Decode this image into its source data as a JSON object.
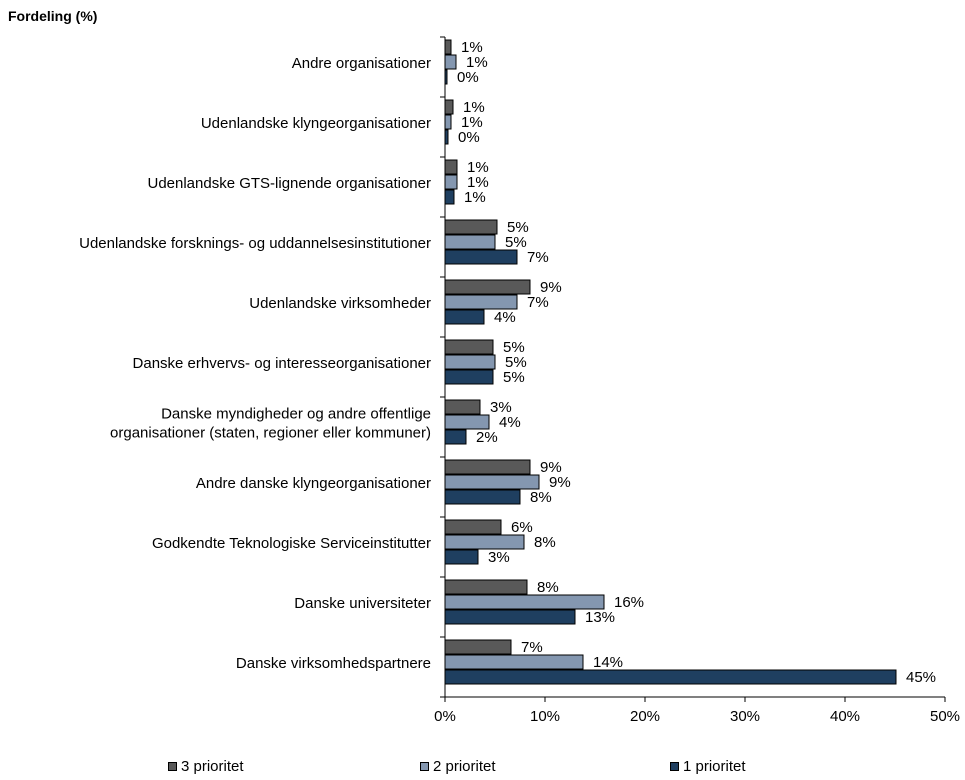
{
  "chart_data": {
    "type": "bar",
    "orientation": "horizontal",
    "title": "Fordeling (%)",
    "categories": [
      "Andre organisationer",
      "Udenlandske klyngeorganisationer",
      "Udenlandske GTS-lignende organisationer",
      "Udenlandske forsknings- og uddannelsesinstitutioner",
      "Udenlandske virksomheder",
      "Danske erhvervs- og interesseorganisationer",
      "Danske myndigheder og andre offentlige organisationer (staten, regioner eller kommuner)",
      "Andre danske klyngeorganisationer",
      "Godkendte Teknologiske Serviceinstitutter",
      "Danske universiteter",
      "Danske virksomhedspartnere"
    ],
    "category_lines": [
      [
        "Andre organisationer"
      ],
      [
        "Udenlandske klyngeorganisationer"
      ],
      [
        "Udenlandske GTS-lignende organisationer"
      ],
      [
        "Udenlandske forsknings- og uddannelsesinstitutioner"
      ],
      [
        "Udenlandske virksomheder"
      ],
      [
        "Danske erhvervs- og interesseorganisationer"
      ],
      [
        "Danske myndigheder og andre offentlige",
        "organisationer (staten, regioner eller kommuner)"
      ],
      [
        "Andre danske klyngeorganisationer"
      ],
      [
        "Godkendte Teknologiske Serviceinstitutter"
      ],
      [
        "Danske universiteter"
      ],
      [
        "Danske virksomhedspartnere"
      ]
    ],
    "series": [
      {
        "name": "3 prioritet",
        "color": "#595959",
        "values": [
          0.6,
          0.8,
          1.2,
          5.2,
          8.5,
          4.8,
          3.5,
          8.5,
          5.6,
          8.2,
          6.6
        ],
        "labels": [
          "1%",
          "1%",
          "1%",
          "5%",
          "9%",
          "5%",
          "3%",
          "9%",
          "6%",
          "8%",
          "7%"
        ]
      },
      {
        "name": "2 prioritet",
        "color": "#8497b0",
        "values": [
          1.1,
          0.6,
          1.2,
          5.0,
          7.2,
          5.0,
          4.4,
          9.4,
          7.9,
          15.9,
          13.8
        ],
        "labels": [
          "1%",
          "1%",
          "1%",
          "5%",
          "7%",
          "5%",
          "4%",
          "9%",
          "8%",
          "16%",
          "14%"
        ]
      },
      {
        "name": "1 prioritet",
        "color": "#1f3f60",
        "values": [
          0.2,
          0.3,
          0.9,
          7.2,
          3.9,
          4.8,
          2.1,
          7.5,
          3.3,
          13.0,
          45.1
        ],
        "labels": [
          "0%",
          "0%",
          "1%",
          "7%",
          "4%",
          "5%",
          "2%",
          "8%",
          "3%",
          "13%",
          "45%"
        ]
      }
    ],
    "x_ticks": [
      "0%",
      "10%",
      "20%",
      "30%",
      "40%",
      "50%"
    ],
    "xlim": [
      0,
      50
    ],
    "grid": false,
    "legend_position": "bottom"
  }
}
